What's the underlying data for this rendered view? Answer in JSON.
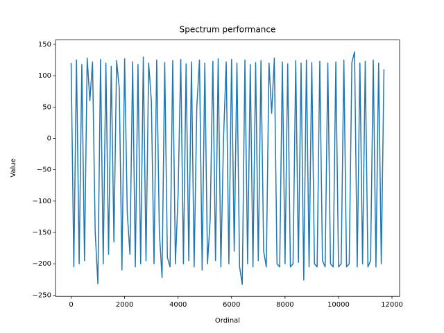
{
  "chart_data": {
    "type": "line",
    "title": "Spectrum performance",
    "xlabel": "Ordinal",
    "ylabel": "Value",
    "color": "#1f77b4",
    "x": [
      0,
      100,
      200,
      300,
      400,
      500,
      600,
      700,
      800,
      900,
      1000,
      1100,
      1200,
      1300,
      1400,
      1500,
      1600,
      1700,
      1800,
      1900,
      2000,
      2100,
      2200,
      2300,
      2400,
      2500,
      2600,
      2700,
      2800,
      2900,
      3000,
      3100,
      3200,
      3300,
      3400,
      3500,
      3600,
      3700,
      3800,
      3900,
      4000,
      4100,
      4200,
      4300,
      4400,
      4500,
      4600,
      4700,
      4800,
      4900,
      5000,
      5100,
      5200,
      5300,
      5400,
      5500,
      5600,
      5700,
      5800,
      5900,
      6000,
      6100,
      6200,
      6300,
      6400,
      6500,
      6600,
      6700,
      6800,
      6900,
      7000,
      7100,
      7200,
      7300,
      7400,
      7500,
      7600,
      7700,
      7800,
      7900,
      8000,
      8100,
      8200,
      8300,
      8400,
      8500,
      8600,
      8700,
      8800,
      8900,
      9000,
      9100,
      9200,
      9300,
      9400,
      9500,
      9600,
      9700,
      9800,
      9900,
      10000,
      10100,
      10200,
      10300,
      10400,
      10500,
      10600,
      10700,
      10800,
      10900,
      11000,
      11100,
      11200,
      11300,
      11400,
      11500,
      11600,
      11700
    ],
    "values": [
      120,
      -205,
      125,
      -200,
      118,
      -195,
      128,
      60,
      122,
      -150,
      -232,
      126,
      -200,
      120,
      -185,
      115,
      -165,
      124,
      80,
      -210,
      127,
      -120,
      -185,
      122,
      -205,
      118,
      -200,
      130,
      -195,
      120,
      60,
      -200,
      125,
      -150,
      -222,
      121,
      -190,
      -205,
      124,
      -200,
      -90,
      126,
      -200,
      119,
      -195,
      122,
      -205,
      50,
      125,
      -210,
      120,
      -200,
      -130,
      123,
      -195,
      127,
      -205,
      0,
      122,
      -200,
      126,
      -180,
      120,
      -205,
      -233,
      125,
      -200,
      118,
      -205,
      121,
      -195,
      124,
      -180,
      -205,
      120,
      40,
      128,
      -200,
      -205,
      122,
      -200,
      119,
      -205,
      -200,
      124,
      -198,
      120,
      -226,
      125,
      -205,
      121,
      -200,
      -205,
      123,
      -195,
      -205,
      120,
      -200,
      -205,
      122,
      -205,
      -200,
      125,
      -205,
      -200,
      121,
      138,
      -205,
      120,
      -200,
      123,
      -205,
      -195,
      125,
      -205,
      120,
      -200,
      110
    ],
    "xlim": [
      -585,
      12285
    ],
    "ylim": [
      -252,
      157
    ],
    "xticks": [
      0,
      2000,
      4000,
      6000,
      8000,
      10000,
      12000
    ],
    "yticks": [
      {
        "value": -250,
        "label": "−250"
      },
      {
        "value": -200,
        "label": "−200"
      },
      {
        "value": -150,
        "label": "−150"
      },
      {
        "value": -100,
        "label": "−100"
      },
      {
        "value": -50,
        "label": "−50"
      },
      0,
      50,
      100,
      150
    ]
  }
}
